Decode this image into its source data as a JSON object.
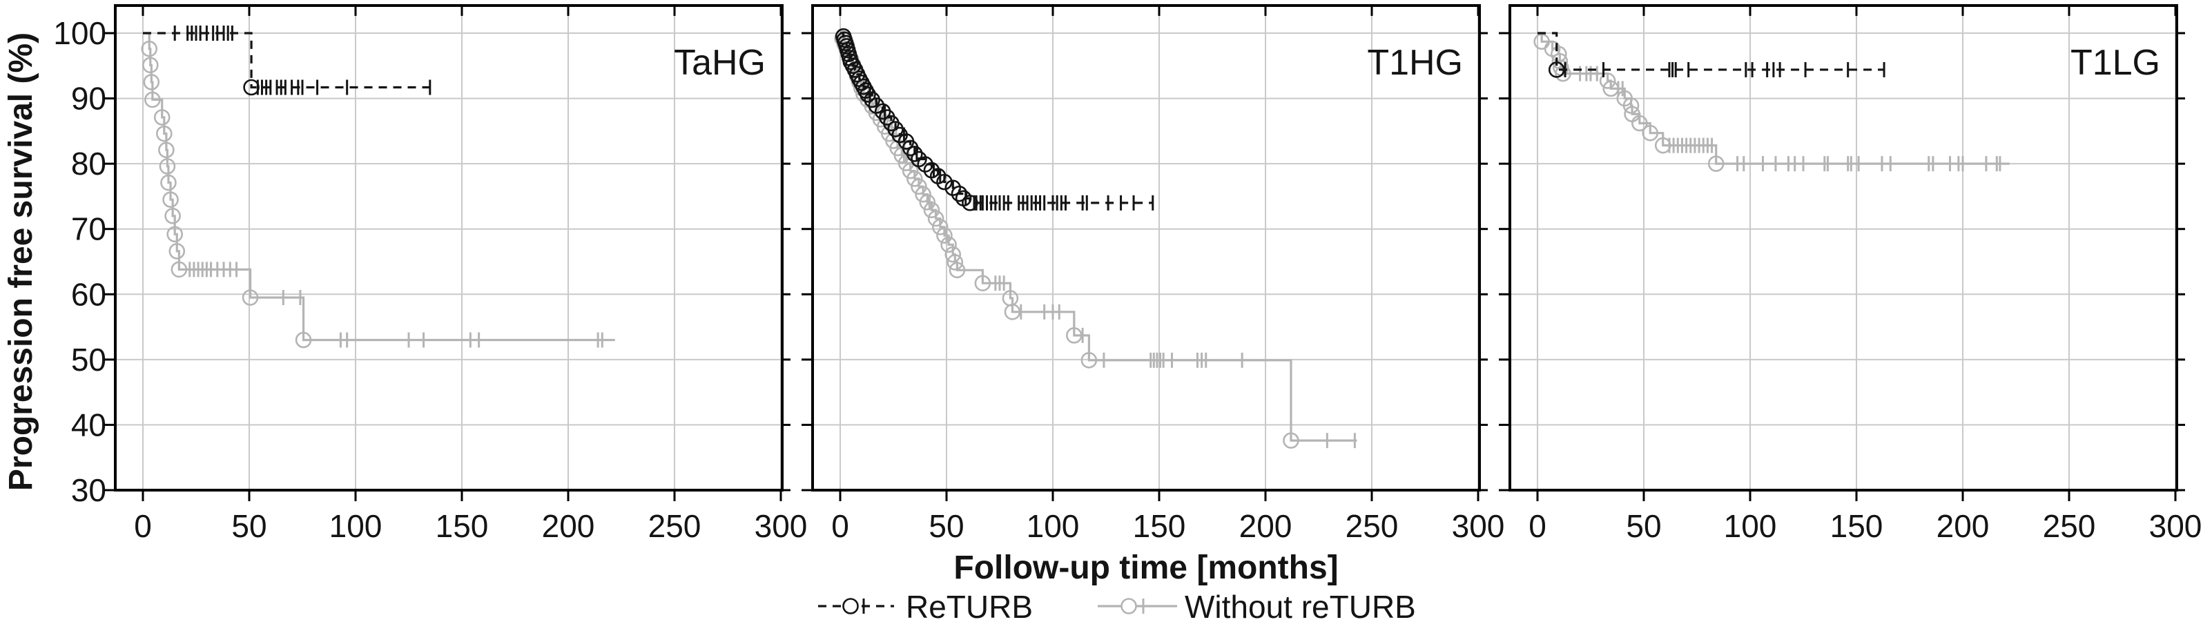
{
  "figure": {
    "kind": "kaplan-meier-survival-figure",
    "background": "#ffffff"
  },
  "chart_data": {
    "type": "line",
    "subtype": "kaplan-meier-step",
    "title": "",
    "xlabel": "Follow-up time [months]",
    "ylabel": "Progression free survival (%)",
    "xlim": [
      0,
      300
    ],
    "ylim": [
      30,
      100
    ],
    "xticks": [
      0,
      50,
      100,
      150,
      200,
      250,
      300
    ],
    "yticks": [
      100,
      90,
      80,
      70,
      60,
      50,
      40,
      30
    ],
    "grid": true,
    "legend_position": "bottom-center",
    "colors": {
      "returb": "#141414",
      "without_returb": "#b4b4b4",
      "gridline": "#c9c9c9",
      "axis": "#000000"
    },
    "legend": [
      {
        "label": "ReTURB",
        "series": "returb"
      },
      {
        "label": "Without reTURB",
        "series": "without_returb"
      }
    ],
    "panels": [
      {
        "label": "TaHG",
        "series": [
          {
            "name": "Without reTURB",
            "key": "without_returb",
            "style": "solid",
            "marker": "circle",
            "events": [
              [
                3,
                97.6
              ],
              [
                3.5,
                95.1
              ],
              [
                4,
                92.5
              ],
              [
                4.5,
                89.8
              ],
              [
                9,
                87.1
              ],
              [
                10,
                84.6
              ],
              [
                11,
                82.1
              ],
              [
                11.5,
                79.6
              ],
              [
                12,
                77.1
              ],
              [
                13,
                74.5
              ],
              [
                14,
                72
              ],
              [
                15,
                69.2
              ],
              [
                16,
                66.6
              ],
              [
                17,
                63.8
              ],
              [
                50.5,
                59.5
              ],
              [
                75.5,
                53
              ]
            ],
            "censors": [
              22,
              24,
              26,
              28,
              30,
              32,
              35,
              38,
              41,
              44,
              66,
              74,
              93,
              96,
              125,
              132,
              154,
              158,
              214,
              216
            ],
            "end": 222
          },
          {
            "name": "ReTURB",
            "key": "returb",
            "style": "dashed",
            "marker": "circle",
            "events": [
              [
                51,
                91.7
              ]
            ],
            "censors": [
              15,
              21,
              23,
              25,
              27,
              30,
              33,
              35,
              38,
              40,
              42,
              54,
              56,
              58,
              60,
              63,
              65,
              67,
              70,
              73,
              75,
              82,
              96,
              135
            ],
            "end": 135
          }
        ]
      },
      {
        "label": "T1HG",
        "series": [
          {
            "name": "Without reTURB",
            "key": "without_returb",
            "style": "solid",
            "marker": "circle",
            "events": [
              [
                1,
                99.2
              ],
              [
                2,
                98.4
              ],
              [
                3,
                97.6
              ],
              [
                4,
                96.8
              ],
              [
                5,
                96
              ],
              [
                6,
                95.2
              ],
              [
                7,
                94.3
              ],
              [
                8,
                93.4
              ],
              [
                9,
                92.5
              ],
              [
                10,
                91.6
              ],
              [
                11,
                90.7
              ],
              [
                13,
                89.8
              ],
              [
                15,
                88.8
              ],
              [
                17,
                87.8
              ],
              [
                19,
                86.8
              ],
              [
                21,
                85.7
              ],
              [
                23,
                84.6
              ],
              [
                25,
                83.5
              ],
              [
                27,
                82.4
              ],
              [
                29,
                81.3
              ],
              [
                31,
                80.1
              ],
              [
                33,
                78.9
              ],
              [
                35,
                77.7
              ],
              [
                37,
                76.5
              ],
              [
                39,
                75.3
              ],
              [
                41,
                74.1
              ],
              [
                43,
                72.9
              ],
              [
                45,
                71.6
              ],
              [
                47,
                70.3
              ],
              [
                49,
                69
              ],
              [
                51,
                67.6
              ],
              [
                53,
                66.1
              ],
              [
                54,
                64.9
              ],
              [
                55,
                63.7
              ],
              [
                67,
                61.7
              ],
              [
                80,
                59.4
              ],
              [
                81,
                57.3
              ],
              [
                110,
                53.7
              ],
              [
                117,
                49.9
              ],
              [
                212,
                37.6
              ]
            ],
            "censors": [
              30,
              42,
              50,
              73,
              75,
              77,
              85,
              96,
              100,
              103,
              114,
              124,
              146,
              147.5,
              149,
              150.5,
              152,
              156,
              168,
              170,
              172,
              189,
              229,
              242
            ],
            "end": 243
          },
          {
            "name": "ReTURB",
            "key": "returb",
            "style": "dashed",
            "marker": "circle",
            "events": [
              [
                1.5,
                99.5
              ],
              [
                2,
                99
              ],
              [
                2.5,
                98.5
              ],
              [
                3,
                98
              ],
              [
                3.5,
                97.4
              ],
              [
                4,
                96.8
              ],
              [
                4.5,
                96.2
              ],
              [
                5,
                95.6
              ],
              [
                6,
                95
              ],
              [
                7,
                94.4
              ],
              [
                8,
                93.7
              ],
              [
                9,
                93
              ],
              [
                10,
                92.4
              ],
              [
                11,
                91.8
              ],
              [
                12,
                91.2
              ],
              [
                13,
                90.6
              ],
              [
                15,
                89.8
              ],
              [
                17,
                88.9
              ],
              [
                20,
                88
              ],
              [
                22,
                87.1
              ],
              [
                24,
                86.2
              ],
              [
                26,
                85.3
              ],
              [
                28,
                84.4
              ],
              [
                31,
                83.4
              ],
              [
                33,
                82.4
              ],
              [
                35,
                81.5
              ],
              [
                37,
                80.7
              ],
              [
                40,
                79.9
              ],
              [
                43,
                79
              ],
              [
                46,
                78.1
              ],
              [
                49,
                77.2
              ],
              [
                53,
                76.3
              ],
              [
                56,
                75.4
              ],
              [
                58,
                74.7
              ],
              [
                61,
                74
              ]
            ],
            "censors": [
              14,
              21,
              30,
              36,
              44,
              47,
              59,
              63,
              64,
              66,
              67,
              69,
              71,
              73,
              75,
              77,
              79,
              84,
              86,
              88,
              90,
              92,
              94,
              96,
              100,
              102,
              104,
              106,
              114,
              116,
              126,
              132,
              138,
              147
            ],
            "end": 147
          }
        ]
      },
      {
        "label": "T1LG",
        "series": [
          {
            "name": "Without reTURB",
            "key": "without_returb",
            "style": "solid",
            "marker": "circle",
            "events": [
              [
                2,
                98.7
              ],
              [
                7,
                97.6
              ],
              [
                10,
                96.8
              ],
              [
                10.5,
                95.7
              ],
              [
                11,
                94.7
              ],
              [
                12,
                93.8
              ],
              [
                33,
                92.7
              ],
              [
                34.5,
                91.5
              ],
              [
                41,
                90
              ],
              [
                44,
                88.9
              ],
              [
                44.5,
                87.6
              ],
              [
                48,
                86.2
              ],
              [
                53,
                84.7
              ],
              [
                59,
                82.8
              ],
              [
                84,
                80
              ]
            ],
            "censors": [
              20,
              23,
              25,
              28,
              38,
              40,
              62,
              64,
              66,
              68,
              70,
              72,
              74,
              76,
              78,
              80,
              82,
              94,
              97,
              106,
              112,
              118,
              121,
              125,
              135,
              136.5,
              146,
              147.5,
              151,
              162,
              166,
              184,
              186,
              194,
              198,
              200,
              211,
              216,
              217.5
            ],
            "end": 222
          },
          {
            "name": "ReTURB",
            "key": "returb",
            "style": "dashed",
            "marker": "circle",
            "events": [
              [
                9,
                94.4
              ]
            ],
            "censors": [
              13,
              31,
              62,
              63.5,
              65,
              71,
              98,
              101,
              108,
              111,
              114,
              126,
              146,
              163
            ],
            "end": 163
          }
        ]
      }
    ]
  }
}
